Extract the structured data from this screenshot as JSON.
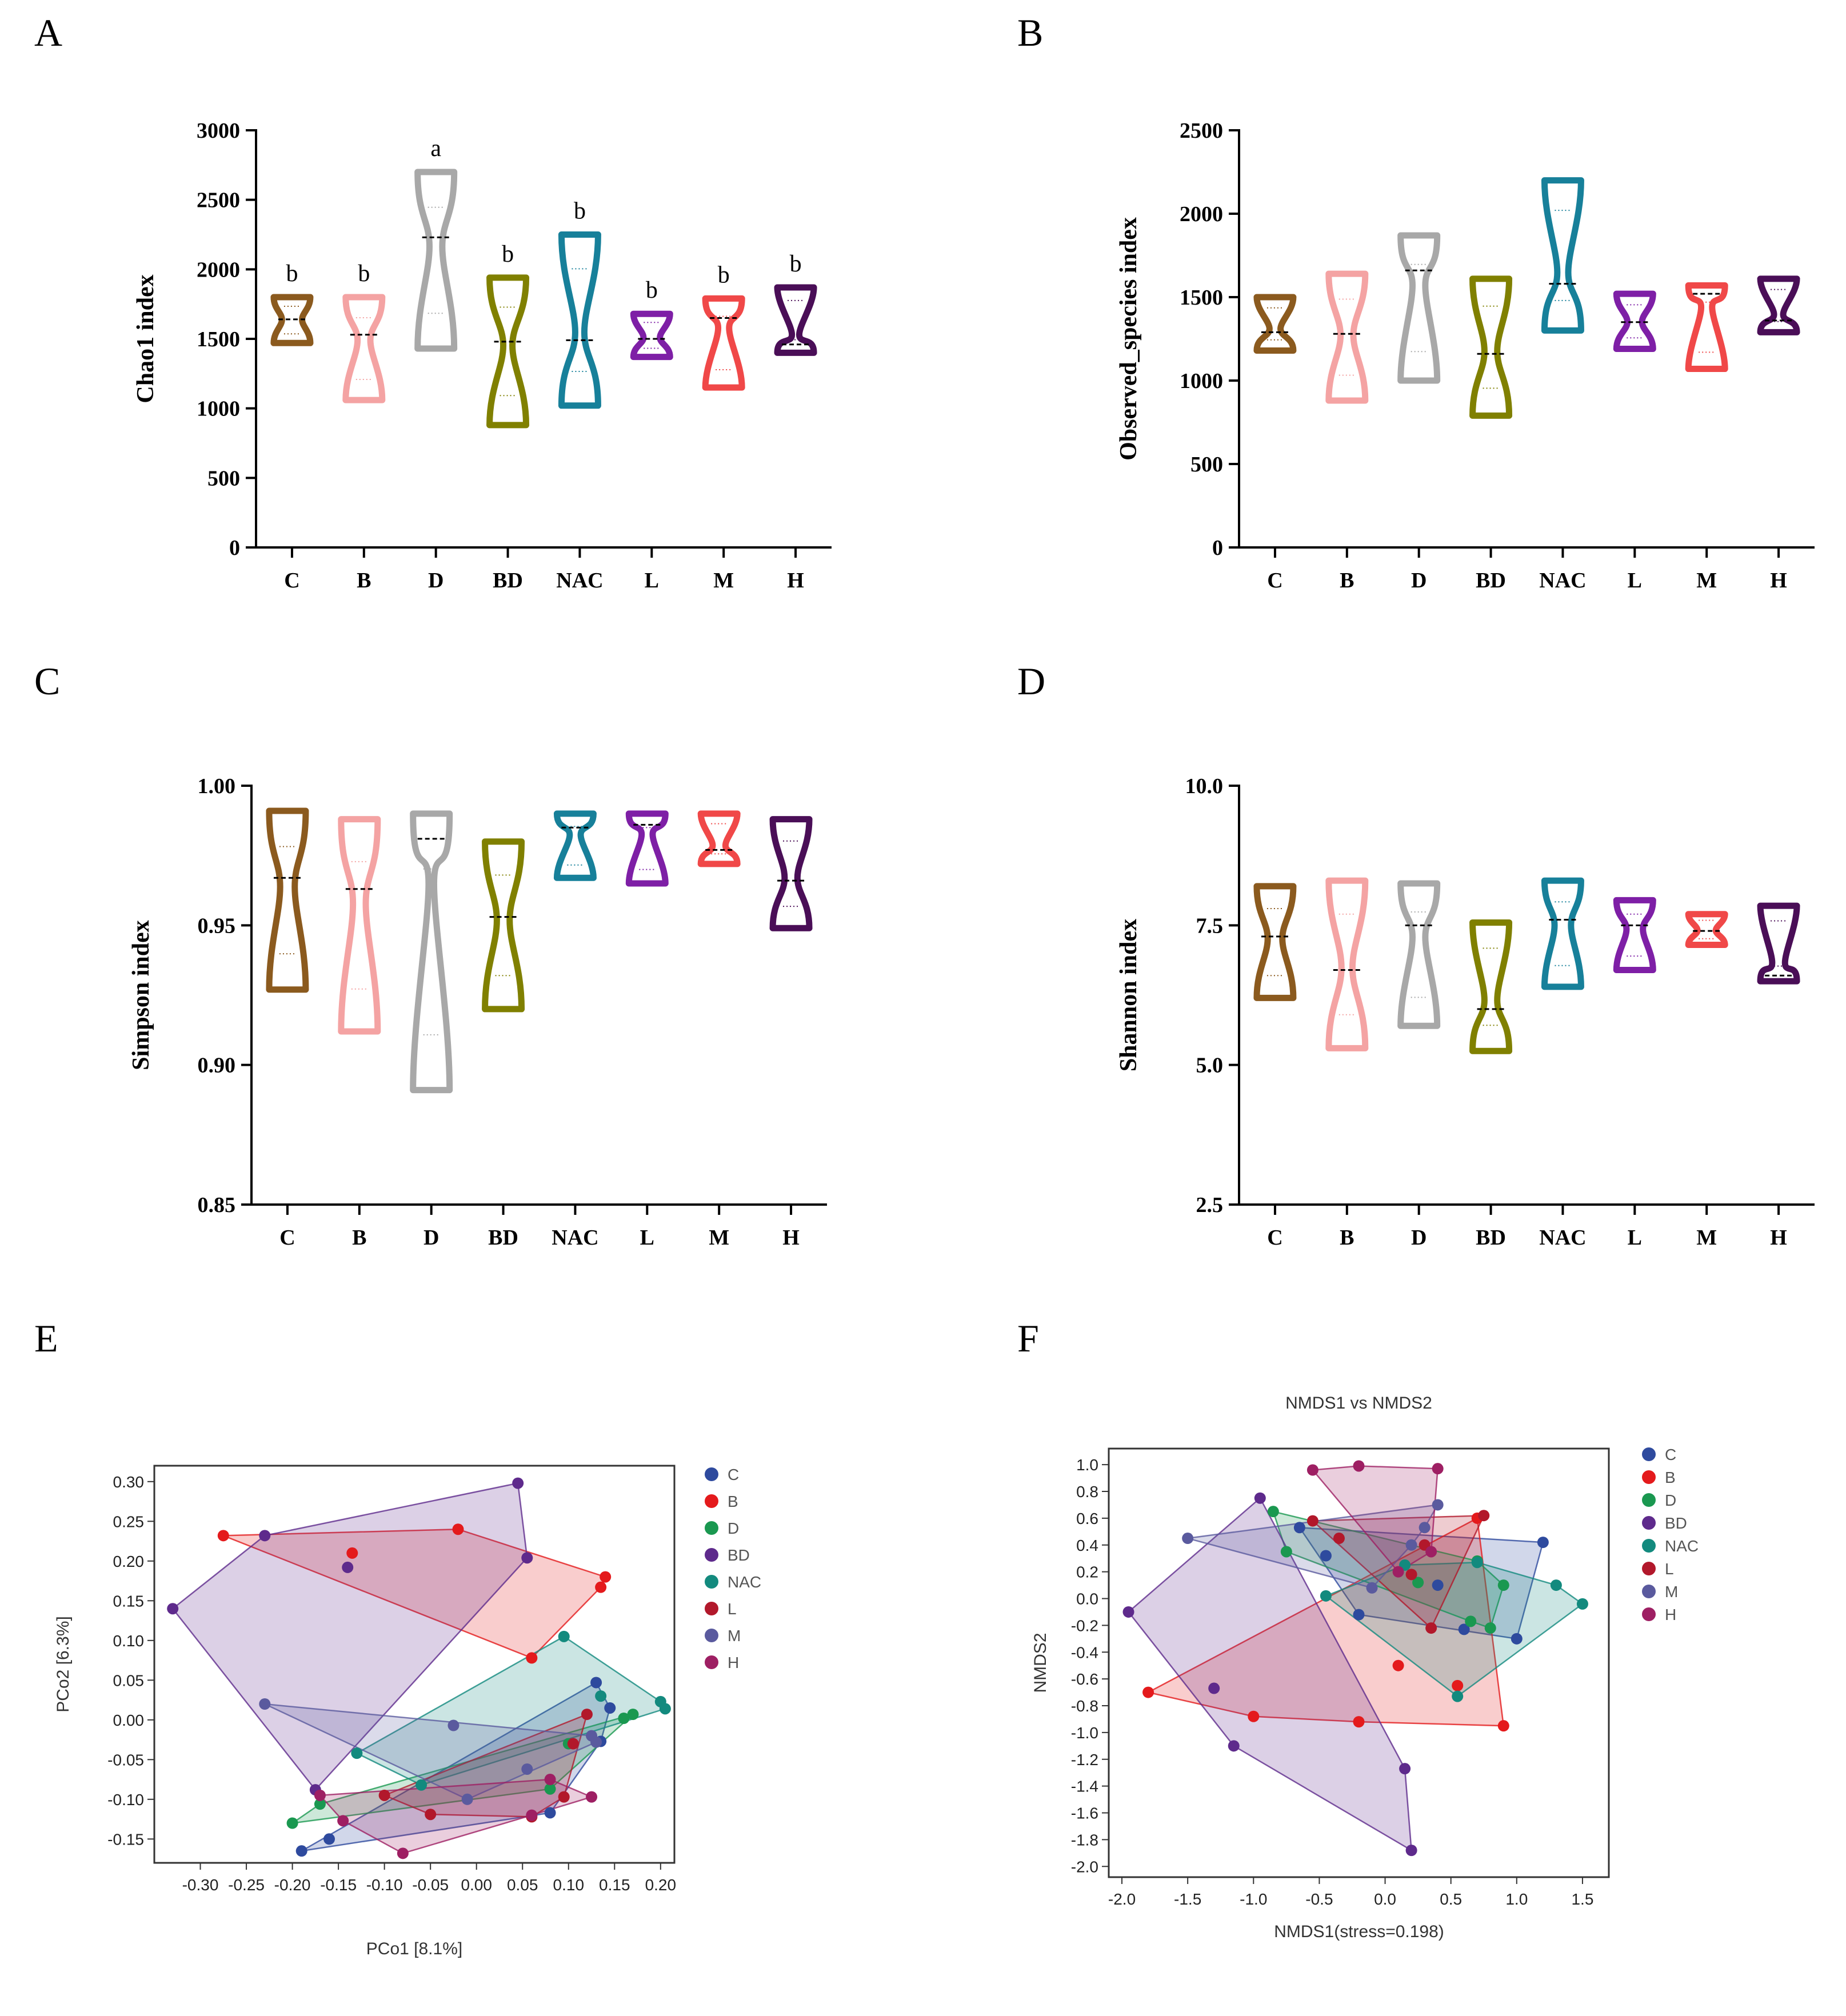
{
  "panel_labels": [
    "A",
    "B",
    "C",
    "D",
    "E",
    "F"
  ],
  "group_colors": {
    "C": "#8B5A1E",
    "B": "#F4A3A3",
    "D": "#A8A8A8",
    "BD": "#808000",
    "NAC": "#17809A",
    "L": "#7E1FA6",
    "M": "#F04848",
    "H": "#4A0E57"
  },
  "scatter_colors": {
    "C": "#2E4A9E",
    "B": "#E41A1C",
    "D": "#1A9850",
    "BD": "#5E2A8C",
    "NAC": "#138A7E",
    "L": "#B2182B",
    "M": "#5A5A9E",
    "H": "#9E1F63"
  },
  "chart_data": [
    {
      "type": "violin",
      "panel": "A",
      "ylabel": "Chao1 index",
      "ylim": [
        0,
        3000
      ],
      "yticks": [
        "0",
        "500",
        "1000",
        "1500",
        "2000",
        "2500",
        "3000"
      ],
      "categories": [
        "C",
        "B",
        "D",
        "BD",
        "NAC",
        "L",
        "M",
        "H"
      ],
      "min": [
        1470,
        1060,
        1430,
        880,
        1020,
        1370,
        1150,
        1400
      ],
      "max": [
        1800,
        1800,
        2700,
        1940,
        2250,
        1680,
        1790,
        1870
      ],
      "median": [
        1640,
        1530,
        2230,
        1480,
        1490,
        1500,
        1650,
        1460
      ],
      "waist": [
        0.55,
        0.35,
        0.35,
        0.25,
        0.25,
        0.45,
        0.3,
        0.2
      ],
      "significance": [
        "b",
        "b",
        "a",
        "b",
        "b",
        "b",
        "b",
        "b"
      ]
    },
    {
      "type": "violin",
      "panel": "B",
      "ylabel": "Observed_species index",
      "ylim": [
        0,
        2500
      ],
      "yticks": [
        "0",
        "500",
        "1000",
        "1500",
        "2000",
        "2500"
      ],
      "categories": [
        "C",
        "B",
        "D",
        "BD",
        "NAC",
        "L",
        "M",
        "H"
      ],
      "min": [
        1180,
        880,
        1000,
        790,
        1300,
        1190,
        1070,
        1290
      ],
      "max": [
        1500,
        1640,
        1870,
        1610,
        2200,
        1520,
        1570,
        1610
      ],
      "median": [
        1290,
        1280,
        1660,
        1160,
        1580,
        1350,
        1520,
        1360
      ],
      "waist": [
        0.3,
        0.35,
        0.35,
        0.35,
        0.3,
        0.4,
        0.3,
        0.25
      ],
      "significance": []
    },
    {
      "type": "violin",
      "panel": "C",
      "ylabel": "Simpson index",
      "ylim": [
        0.85,
        1.0
      ],
      "yticks": [
        "0.85",
        "0.90",
        "0.95",
        "1.00"
      ],
      "categories": [
        "C",
        "B",
        "D",
        "BD",
        "NAC",
        "L",
        "M",
        "H"
      ],
      "min": [
        0.927,
        0.912,
        0.891,
        0.92,
        0.967,
        0.965,
        0.972,
        0.949
      ],
      "max": [
        0.991,
        0.988,
        0.99,
        0.98,
        0.99,
        0.99,
        0.99,
        0.988
      ],
      "median": [
        0.967,
        0.963,
        0.981,
        0.953,
        0.985,
        0.986,
        0.977,
        0.966
      ],
      "waist": [
        0.4,
        0.35,
        0.15,
        0.35,
        0.3,
        0.3,
        0.35,
        0.35
      ],
      "significance": []
    },
    {
      "type": "violin",
      "panel": "D",
      "ylabel": "Shannon index",
      "ylim": [
        2.5,
        10.0
      ],
      "yticks": [
        "2.5",
        "5.0",
        "7.5",
        "10.0"
      ],
      "categories": [
        "C",
        "B",
        "D",
        "BD",
        "NAC",
        "L",
        "M",
        "H"
      ],
      "min": [
        6.2,
        5.3,
        5.7,
        5.25,
        6.4,
        6.7,
        7.15,
        6.5
      ],
      "max": [
        8.2,
        8.3,
        8.25,
        7.55,
        8.3,
        7.95,
        7.7,
        7.85
      ],
      "median": [
        7.3,
        6.7,
        7.5,
        6.0,
        7.6,
        7.5,
        7.4,
        6.6
      ],
      "waist": [
        0.4,
        0.3,
        0.35,
        0.35,
        0.45,
        0.45,
        0.5,
        0.35
      ],
      "significance": []
    },
    {
      "type": "scatter",
      "panel": "E",
      "xlabel": "PCo1 [8.1%]",
      "ylabel": "PCo2 [6.3%]",
      "xlim": [
        -0.35,
        0.215
      ],
      "ylim": [
        -0.18,
        0.32
      ],
      "xticks": [
        "-0.30",
        "-0.25",
        "-0.20",
        "-0.15",
        "-0.10",
        "-0.05",
        "0.00",
        "0.05",
        "0.10",
        "0.15",
        "0.20"
      ],
      "yticks": [
        "-0.15",
        "-0.10",
        "-0.05",
        "0.00",
        "0.05",
        "0.10",
        "0.15",
        "0.20",
        "0.25",
        "0.30"
      ],
      "legend": [
        "C",
        "B",
        "D",
        "BD",
        "NAC",
        "L",
        "M",
        "H"
      ],
      "series": [
        {
          "name": "C",
          "x": [
            -0.19,
            -0.16,
            0.13,
            0.145,
            0.135,
            0.08
          ],
          "y": [
            -0.165,
            -0.15,
            0.047,
            0.015,
            -0.027,
            -0.117
          ]
        },
        {
          "name": "B",
          "x": [
            -0.275,
            -0.135,
            -0.02,
            0.14,
            0.135,
            0.06
          ],
          "y": [
            0.232,
            0.21,
            0.24,
            0.18,
            0.167,
            0.078
          ]
        },
        {
          "name": "D",
          "x": [
            -0.2,
            -0.17,
            0.08,
            0.16,
            0.17,
            0.1
          ],
          "y": [
            -0.13,
            -0.106,
            -0.087,
            0.002,
            0.007,
            -0.03
          ]
        },
        {
          "name": "BD",
          "x": [
            -0.33,
            -0.23,
            0.045,
            0.055,
            -0.175,
            -0.14
          ],
          "y": [
            0.14,
            0.232,
            0.298,
            0.204,
            -0.088,
            0.192
          ]
        },
        {
          "name": "NAC",
          "x": [
            -0.13,
            -0.06,
            0.095,
            0.135,
            0.2,
            0.205
          ],
          "y": [
            -0.042,
            -0.082,
            0.105,
            0.03,
            0.023,
            0.014
          ]
        },
        {
          "name": "L",
          "x": [
            -0.1,
            -0.05,
            0.06,
            0.095,
            0.12,
            0.105
          ],
          "y": [
            -0.095,
            -0.119,
            -0.122,
            -0.097,
            0.007,
            -0.03
          ]
        },
        {
          "name": "M",
          "x": [
            -0.23,
            -0.025,
            -0.01,
            0.055,
            0.13,
            0.125
          ],
          "y": [
            0.02,
            -0.007,
            -0.1,
            -0.062,
            -0.028,
            -0.02
          ]
        },
        {
          "name": "H",
          "x": [
            -0.17,
            -0.145,
            -0.08,
            0.06,
            0.125,
            0.08
          ],
          "y": [
            -0.095,
            -0.127,
            -0.168,
            -0.12,
            -0.097,
            -0.075
          ]
        }
      ]
    },
    {
      "type": "scatter",
      "panel": "F",
      "title": "NMDS1 vs NMDS2",
      "xlabel": "NMDS1(stress=0.198)",
      "ylabel": "NMDS2",
      "xlim": [
        -2.1,
        1.7
      ],
      "ylim": [
        -2.08,
        1.12
      ],
      "xticks": [
        "-2.0",
        "-1.5",
        "-1.0",
        "-0.5",
        "0.0",
        "0.5",
        "1.0",
        "1.5"
      ],
      "yticks": [
        "-2.0",
        "-1.8",
        "-1.6",
        "-1.4",
        "-1.2",
        "-1.0",
        "-0.8",
        "-0.6",
        "-0.4",
        "-0.2",
        "0.0",
        "0.2",
        "0.4",
        "0.6",
        "0.8",
        "1.0"
      ],
      "legend": [
        "C",
        "B",
        "D",
        "BD",
        "NAC",
        "L",
        "M",
        "H"
      ],
      "series": [
        {
          "name": "C",
          "x": [
            -0.65,
            -0.45,
            -0.2,
            0.4,
            0.6,
            1.0,
            1.2
          ],
          "y": [
            0.53,
            0.32,
            -0.12,
            0.1,
            -0.23,
            -0.3,
            0.42
          ]
        },
        {
          "name": "B",
          "x": [
            -1.8,
            -1.0,
            -0.2,
            0.1,
            0.9,
            0.55,
            0.7
          ],
          "y": [
            -0.7,
            -0.88,
            -0.92,
            -0.5,
            -0.95,
            -0.65,
            0.6
          ]
        },
        {
          "name": "D",
          "x": [
            -0.85,
            -0.75,
            0.25,
            0.7,
            0.9,
            0.8,
            0.65
          ],
          "y": [
            0.65,
            0.35,
            0.12,
            0.28,
            0.1,
            -0.22,
            -0.17
          ]
        },
        {
          "name": "BD",
          "x": [
            -1.95,
            -1.3,
            -1.15,
            -0.95,
            0.15,
            0.2
          ],
          "y": [
            -0.1,
            -0.67,
            -1.1,
            0.75,
            -1.27,
            -1.88
          ]
        },
        {
          "name": "NAC",
          "x": [
            -0.45,
            0.15,
            0.7,
            1.3,
            1.5,
            0.55
          ],
          "y": [
            0.02,
            0.25,
            0.27,
            0.1,
            -0.04,
            -0.73
          ]
        },
        {
          "name": "L",
          "x": [
            -0.55,
            -0.35,
            0.2,
            0.3,
            0.75,
            0.35
          ],
          "y": [
            0.58,
            0.45,
            0.18,
            0.4,
            0.62,
            -0.22
          ]
        },
        {
          "name": "M",
          "x": [
            -1.5,
            -0.1,
            0.2,
            0.4,
            0.3
          ],
          "y": [
            0.45,
            0.08,
            0.4,
            0.7,
            0.53
          ]
        },
        {
          "name": "H",
          "x": [
            -0.55,
            -0.2,
            0.4,
            0.35,
            0.1
          ],
          "y": [
            0.96,
            0.99,
            0.97,
            0.35,
            0.2
          ]
        }
      ]
    }
  ]
}
